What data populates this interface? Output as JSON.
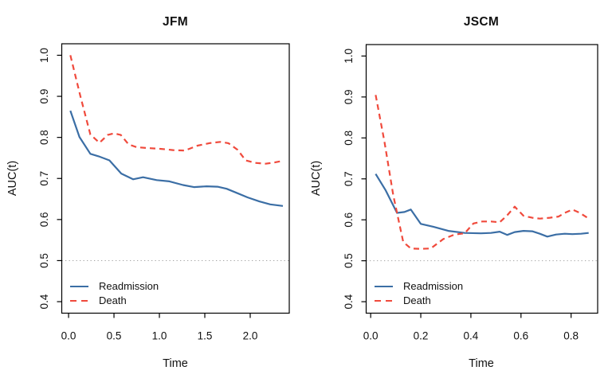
{
  "figure": {
    "background": "#ffffff",
    "axis_color": "#000000",
    "text_color": "#111111"
  },
  "legend": {
    "readmission_label": "Readmission",
    "death_label": "Death"
  },
  "colors": {
    "readmission": "#3b6ea5",
    "death": "#f04a3c",
    "reference": "#a3a3a3"
  },
  "chart_data": [
    {
      "type": "line",
      "title": "JFM",
      "xlabel": "Time",
      "ylabel": "AUC(t)",
      "xlim": [
        -0.075,
        2.43
      ],
      "ylim": [
        0.372,
        1.028
      ],
      "grid": false,
      "legend_position": "bottom-left",
      "xticks": {
        "values": [
          0.0,
          0.5,
          1.0,
          1.5,
          2.0
        ],
        "labels": [
          "0.0",
          "0.5",
          "1.0",
          "1.5",
          "2.0"
        ]
      },
      "yticks": {
        "values": [
          0.4,
          0.5,
          0.6,
          0.7,
          0.8,
          0.9,
          1.0
        ],
        "labels": [
          "0.4",
          "0.5",
          "0.6",
          "0.7",
          "0.8",
          "0.9",
          "1.0"
        ]
      },
      "reference_line": {
        "y": 0.5,
        "style": "dotted",
        "color": "#a3a3a3"
      },
      "series": [
        {
          "name": "Readmission",
          "color": "#3b6ea5",
          "line": "solid",
          "x": [
            0.02,
            0.12,
            0.24,
            0.33,
            0.45,
            0.58,
            0.71,
            0.82,
            0.97,
            1.11,
            1.26,
            1.38,
            1.52,
            1.64,
            1.74,
            1.85,
            1.97,
            2.1,
            2.22,
            2.36
          ],
          "y": [
            0.865,
            0.801,
            0.76,
            0.754,
            0.744,
            0.712,
            0.698,
            0.703,
            0.696,
            0.693,
            0.684,
            0.679,
            0.681,
            0.68,
            0.675,
            0.665,
            0.654,
            0.644,
            0.637,
            0.633
          ]
        },
        {
          "name": "Death",
          "color": "#f04a3c",
          "line": "dashed",
          "x": [
            0.02,
            0.13,
            0.24,
            0.34,
            0.43,
            0.5,
            0.575,
            0.66,
            0.75,
            0.88,
            1.02,
            1.15,
            1.28,
            1.42,
            1.55,
            1.67,
            1.76,
            1.86,
            1.95,
            2.05,
            2.17,
            2.27,
            2.36
          ],
          "y": [
            1.0,
            0.9,
            0.807,
            0.787,
            0.806,
            0.81,
            0.806,
            0.783,
            0.776,
            0.774,
            0.772,
            0.769,
            0.768,
            0.78,
            0.786,
            0.789,
            0.786,
            0.77,
            0.744,
            0.738,
            0.736,
            0.739,
            0.743
          ]
        }
      ]
    },
    {
      "type": "line",
      "title": "JSCM",
      "xlabel": "Time",
      "ylabel": "AUC(t)",
      "xlim": [
        -0.018,
        0.906
      ],
      "ylim": [
        0.372,
        1.028
      ],
      "grid": false,
      "legend_position": "bottom-left",
      "xticks": {
        "values": [
          0.0,
          0.2,
          0.4,
          0.6,
          0.8
        ],
        "labels": [
          "0.0",
          "0.2",
          "0.4",
          "0.6",
          "0.8"
        ]
      },
      "yticks": {
        "values": [
          0.4,
          0.5,
          0.6,
          0.7,
          0.8,
          0.9,
          1.0
        ],
        "labels": [
          "0.4",
          "0.5",
          "0.6",
          "0.7",
          "0.8",
          "0.9",
          "1.0"
        ]
      },
      "reference_line": {
        "y": 0.5,
        "style": "dotted",
        "color": "#a3a3a3"
      },
      "series": [
        {
          "name": "Readmission",
          "color": "#3b6ea5",
          "line": "solid",
          "x": [
            0.02,
            0.06,
            0.105,
            0.135,
            0.16,
            0.2,
            0.25,
            0.31,
            0.375,
            0.44,
            0.48,
            0.515,
            0.545,
            0.575,
            0.61,
            0.645,
            0.675,
            0.705,
            0.74,
            0.775,
            0.805,
            0.84,
            0.87
          ],
          "y": [
            0.712,
            0.672,
            0.617,
            0.619,
            0.625,
            0.59,
            0.583,
            0.573,
            0.568,
            0.567,
            0.568,
            0.571,
            0.563,
            0.57,
            0.573,
            0.572,
            0.566,
            0.559,
            0.564,
            0.566,
            0.565,
            0.566,
            0.568
          ]
        },
        {
          "name": "Death",
          "color": "#f04a3c",
          "line": "dashed",
          "x": [
            0.02,
            0.055,
            0.09,
            0.13,
            0.16,
            0.2,
            0.24,
            0.29,
            0.335,
            0.375,
            0.41,
            0.445,
            0.48,
            0.515,
            0.545,
            0.575,
            0.61,
            0.645,
            0.675,
            0.715,
            0.75,
            0.775,
            0.805,
            0.835,
            0.865
          ],
          "y": [
            0.905,
            0.79,
            0.66,
            0.546,
            0.53,
            0.529,
            0.53,
            0.553,
            0.564,
            0.567,
            0.591,
            0.596,
            0.596,
            0.594,
            0.611,
            0.632,
            0.61,
            0.605,
            0.603,
            0.605,
            0.608,
            0.617,
            0.625,
            0.617,
            0.605
          ]
        }
      ]
    }
  ]
}
